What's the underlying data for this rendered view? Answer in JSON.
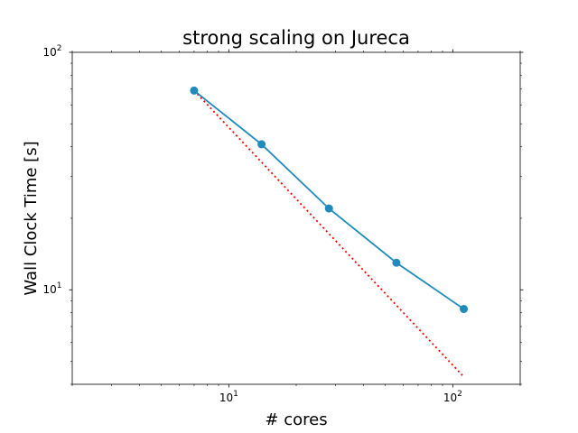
{
  "chart_data": {
    "type": "line",
    "title": "strong scaling on Jureca",
    "xlabel": "# cores",
    "ylabel": "Wall Clock Time [s]",
    "xscale": "log",
    "yscale": "log",
    "xlim": [
      2,
      200
    ],
    "ylim": [
      4,
      100
    ],
    "grid": false,
    "legend": "none",
    "x_ticks": [
      {
        "value": 10,
        "base": "10",
        "exp": "1"
      },
      {
        "value": 100,
        "base": "10",
        "exp": "2"
      }
    ],
    "y_ticks": [
      {
        "value": 10,
        "base": "10",
        "exp": "1"
      },
      {
        "value": 100,
        "base": "10",
        "exp": "2"
      }
    ],
    "series": [
      {
        "style": "solid-markers",
        "color": "#1f8bbd",
        "x": [
          7,
          14,
          28,
          56,
          112
        ],
        "y": [
          69,
          41,
          22,
          13,
          8.3
        ]
      },
      {
        "style": "dotted",
        "color": "#ff0000",
        "x": [
          7,
          112
        ],
        "y": [
          69,
          4.3
        ]
      }
    ]
  }
}
